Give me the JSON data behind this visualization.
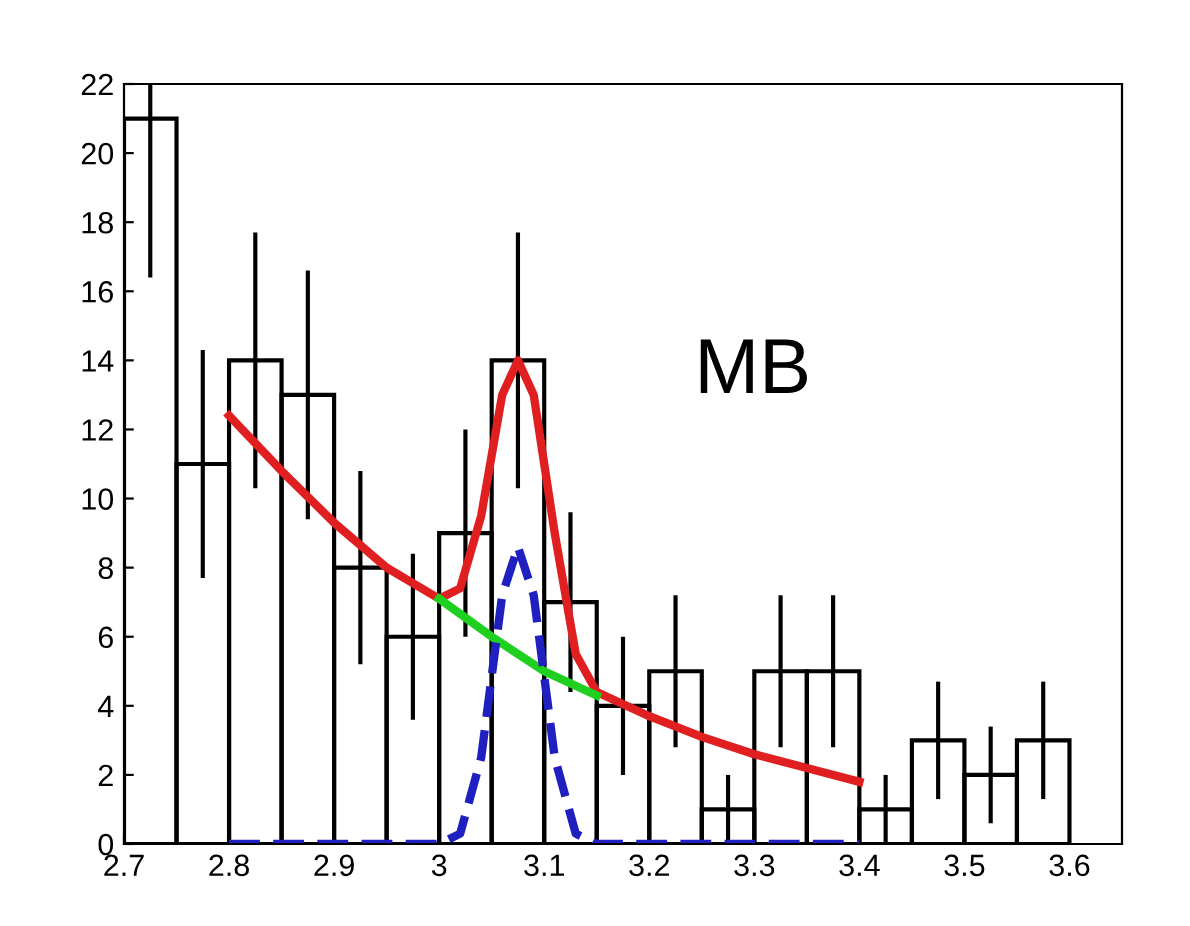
{
  "chart_data": {
    "type": "histogram",
    "annotations": [
      "MB"
    ],
    "bins": [
      2.7,
      2.75,
      2.8,
      2.85,
      2.9,
      2.95,
      3.0,
      3.05,
      3.1,
      3.15,
      3.2,
      3.25,
      3.3,
      3.35,
      3.4,
      3.45,
      3.5,
      3.55,
      3.6
    ],
    "series": [
      {
        "color": "#000000",
        "values": [
          21,
          11,
          14,
          13,
          8,
          6,
          9,
          14,
          7,
          4,
          5,
          1,
          5,
          5,
          1,
          3,
          2,
          3
        ],
        "errors": [
          [
            16.4,
            22
          ],
          3.3,
          3.7,
          3.6,
          2.8,
          2.4,
          3,
          3.7,
          2.6,
          2,
          2.2,
          1,
          2.2,
          2.2,
          1,
          1.7,
          1.4,
          1.7
        ]
      },
      {
        "type": "line",
        "color": "#e02020",
        "x": [
          2.8,
          2.85,
          2.9,
          2.95,
          3.0,
          3.02,
          3.04,
          3.06,
          3.075,
          3.09,
          3.11,
          3.13,
          3.15,
          3.2,
          3.25,
          3.3,
          3.35,
          3.4
        ],
        "values": [
          12.4,
          10.8,
          9.3,
          8.0,
          7.1,
          7.4,
          9.5,
          13,
          14,
          13,
          9,
          5.5,
          4.4,
          3.7,
          3.1,
          2.6,
          2.2,
          1.8
        ]
      },
      {
        "type": "line",
        "color": "#20d020",
        "x": [
          3.0,
          3.05,
          3.1,
          3.15
        ],
        "values": [
          7.1,
          6.0,
          5.0,
          4.3
        ]
      },
      {
        "type": "line",
        "color": "#2020c0",
        "line_style": "dashed",
        "x": [
          2.8,
          3.0,
          3.02,
          3.04,
          3.06,
          3.075,
          3.09,
          3.11,
          3.13,
          3.15,
          3.4
        ],
        "values": [
          0,
          0,
          0.3,
          2.5,
          7.2,
          8.6,
          7.2,
          2.5,
          0.3,
          0,
          0
        ]
      }
    ],
    "xlim": [
      2.7,
      3.65
    ],
    "ylim": [
      0,
      22
    ],
    "xticks": [
      2.7,
      2.8,
      2.9,
      3,
      3.1,
      3.2,
      3.3,
      3.4,
      3.5,
      3.6
    ],
    "yticks": [
      0,
      2,
      4,
      6,
      8,
      10,
      12,
      14,
      16,
      18,
      20,
      22
    ]
  }
}
